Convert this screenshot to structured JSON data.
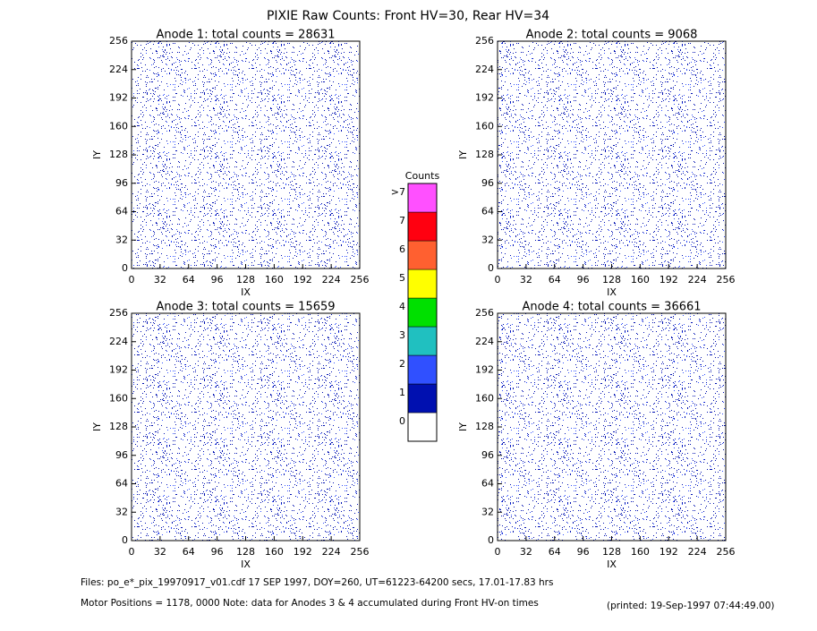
{
  "title": "PIXIE Raw Counts:  Front HV=30, Rear HV=34",
  "chart_data": [
    {
      "type": "heatmap",
      "title": "Anode 1: total counts = 28631",
      "x_label": "IX",
      "y_label": "IY",
      "xlim": [
        0,
        256
      ],
      "ylim": [
        0,
        256
      ],
      "xticks": [
        0,
        32,
        64,
        96,
        128,
        160,
        192,
        224,
        256
      ],
      "yticks": [
        0,
        32,
        64,
        96,
        128,
        160,
        192,
        224,
        256
      ]
    },
    {
      "type": "heatmap",
      "title": "Anode 2: total counts = 9068",
      "x_label": "IX",
      "y_label": "IY",
      "xlim": [
        0,
        256
      ],
      "ylim": [
        0,
        256
      ],
      "xticks": [
        0,
        32,
        64,
        96,
        128,
        160,
        192,
        224,
        256
      ],
      "yticks": [
        0,
        32,
        64,
        96,
        128,
        160,
        192,
        224,
        256
      ]
    },
    {
      "type": "heatmap",
      "title": "Anode 3: total counts = 15659",
      "x_label": "IX",
      "y_label": "IY",
      "xlim": [
        0,
        256
      ],
      "ylim": [
        0,
        256
      ],
      "xticks": [
        0,
        32,
        64,
        96,
        128,
        160,
        192,
        224,
        256
      ],
      "yticks": [
        0,
        32,
        64,
        96,
        128,
        160,
        192,
        224,
        256
      ]
    },
    {
      "type": "heatmap",
      "title": "Anode 4: total counts = 36661",
      "x_label": "IX",
      "y_label": "IY",
      "xlim": [
        0,
        256
      ],
      "ylim": [
        0,
        256
      ],
      "xticks": [
        0,
        32,
        64,
        96,
        128,
        160,
        192,
        224,
        256
      ],
      "yticks": [
        0,
        32,
        64,
        96,
        128,
        160,
        192,
        224,
        256
      ]
    }
  ],
  "colorbar": {
    "title": "Counts",
    "ticks": [
      0,
      1,
      2,
      3,
      4,
      5,
      6,
      7,
      {
        "value": 8,
        "label": ">7"
      }
    ],
    "colors": [
      "#ffffff",
      "#0010b0",
      "#3050ff",
      "#20c0c0",
      "#00e000",
      "#ffff00",
      "#ff6030",
      "#ff0010",
      "#ff50ff"
    ]
  },
  "footer": {
    "files": "Files: po_e*_pix_19970917_v01.cdf    17 SEP 1997, DOY=260, UT=61223-64200 secs, 17.01-17.83 hrs",
    "motor": "Motor Positions = 1178, 0000    Note: data for Anodes 3 & 4 accumulated during Front HV-on times",
    "printed": "(printed: 19-Sep-1997 07:44:49.00)"
  }
}
